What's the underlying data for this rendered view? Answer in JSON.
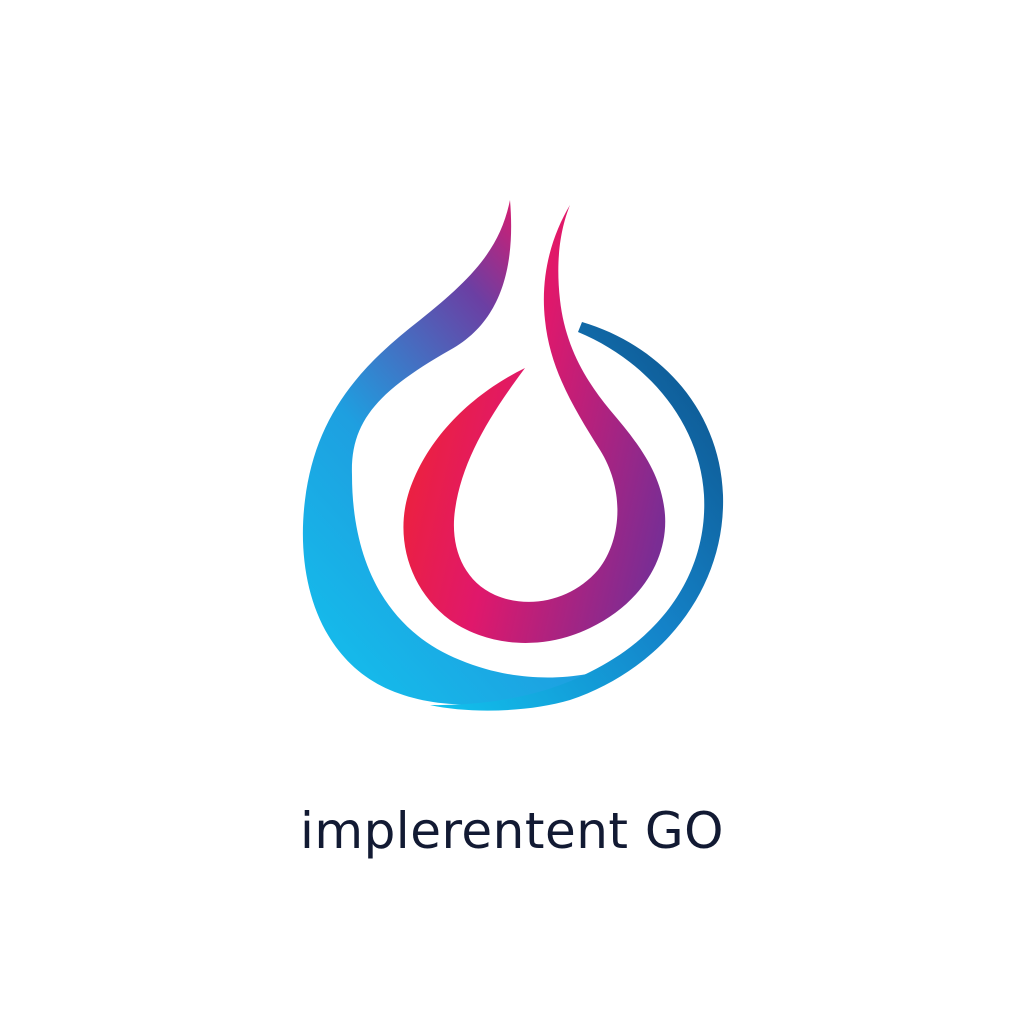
{
  "logo": {
    "name": "flame-droplet-logo",
    "wordmark": "implerentent GO",
    "colors": {
      "cyan": "#12c3ee",
      "blue": "#2a6fbf",
      "navy": "#0d4f86",
      "purple": "#7a2d94",
      "magenta": "#e0186b",
      "red": "#f0242f",
      "wordmark": "#121a33"
    }
  }
}
